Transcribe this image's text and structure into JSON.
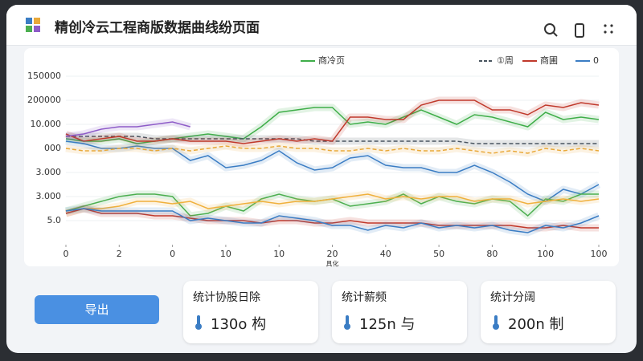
{
  "header": {
    "title": "精创冷云工程商版数据曲线纷页面"
  },
  "chart_data": {
    "type": "line",
    "xlabel": "具化",
    "categories": [
      "0",
      null,
      null,
      "2",
      null,
      null,
      "0",
      null,
      null,
      "10",
      null,
      null,
      "10",
      null,
      null,
      "20",
      null,
      null,
      "40",
      null,
      null,
      "50",
      null,
      null,
      "80",
      null,
      null,
      "100",
      null,
      null,
      "100"
    ],
    "ylim": [
      0,
      7
    ],
    "yticks": [
      1,
      2,
      3,
      4,
      5,
      6,
      7
    ],
    "ytick_labels": [
      "5.0",
      "3.000",
      "3.000",
      "000",
      "10.000",
      "200000",
      "150000"
    ],
    "grid": true,
    "series": [
      {
        "name": "商冷页",
        "color": "#3fae49",
        "values": [
          4.4,
          4.3,
          4.3,
          4.4,
          4.2,
          4.3,
          4.4,
          4.5,
          4.6,
          4.5,
          4.4,
          4.9,
          5.5,
          5.6,
          5.7,
          5.7,
          5.0,
          5.1,
          5.0,
          5.3,
          5.6,
          5.3,
          5.0,
          5.4,
          5.3,
          5.1,
          4.9,
          5.5,
          5.2,
          5.3,
          5.2
        ]
      },
      {
        "name": "①周",
        "color": "#4a5560",
        "dashed": true,
        "values": [
          4.5,
          4.5,
          4.5,
          4.5,
          4.5,
          4.4,
          4.4,
          4.4,
          4.4,
          4.4,
          4.4,
          4.4,
          4.4,
          4.4,
          4.3,
          4.3,
          4.3,
          4.3,
          4.3,
          4.3,
          4.3,
          4.3,
          4.3,
          4.2,
          4.2,
          4.2,
          4.2,
          4.2,
          4.2,
          4.2,
          4.2
        ]
      },
      {
        "name": "商圃",
        "color": "#c0392b",
        "values": [
          4.6,
          4.3,
          4.4,
          4.5,
          4.3,
          4.3,
          4.4,
          4.3,
          4.3,
          4.3,
          4.2,
          4.3,
          4.4,
          4.3,
          4.4,
          4.3,
          5.3,
          5.3,
          5.2,
          5.2,
          5.8,
          6.0,
          6.0,
          6.0,
          5.6,
          5.6,
          5.4,
          5.8,
          5.7,
          5.9,
          5.8
        ]
      },
      {
        "name": "0",
        "color": "#3b7dc4",
        "values": [
          4.3,
          4.2,
          4.0,
          4.0,
          4.1,
          4.0,
          4.0,
          3.5,
          3.7,
          3.2,
          3.3,
          3.5,
          3.9,
          3.4,
          3.1,
          3.2,
          3.6,
          3.7,
          3.3,
          3.2,
          3.2,
          3.0,
          3.0,
          3.3,
          3.0,
          2.6,
          2.1,
          1.8,
          2.3,
          2.1,
          2.5
        ]
      },
      {
        "color": "#8e5cc8",
        "values": [
          4.5,
          4.6,
          4.8,
          4.9,
          4.9,
          5.0,
          5.1,
          4.9,
          null,
          null,
          null,
          null,
          null,
          null,
          null,
          null,
          null,
          null,
          null,
          null,
          null,
          null,
          null,
          null,
          null,
          null,
          null,
          null,
          null,
          null,
          null
        ]
      },
      {
        "color": "#e9a93a",
        "dashed": true,
        "values": [
          4.0,
          3.9,
          3.9,
          4.0,
          4.0,
          3.9,
          4.0,
          3.9,
          4.0,
          4.1,
          4.0,
          4.0,
          4.1,
          4.0,
          4.0,
          3.9,
          3.9,
          4.0,
          3.9,
          4.0,
          3.9,
          3.9,
          4.0,
          3.9,
          3.8,
          3.9,
          3.8,
          4.0,
          3.9,
          4.0,
          3.9
        ]
      },
      {
        "color": "#4caf50",
        "values": [
          1.4,
          1.6,
          1.8,
          2.0,
          2.1,
          2.1,
          2.0,
          1.2,
          1.3,
          1.6,
          1.4,
          1.9,
          2.1,
          1.9,
          1.8,
          1.9,
          1.6,
          1.7,
          1.8,
          2.1,
          1.7,
          2.0,
          1.8,
          1.7,
          1.9,
          1.8,
          1.2,
          1.9,
          1.8,
          2.1,
          2.1
        ]
      },
      {
        "color": "#f0b03c",
        "values": [
          1.3,
          1.5,
          1.5,
          1.6,
          1.8,
          1.8,
          1.7,
          1.8,
          1.5,
          1.6,
          1.7,
          1.8,
          1.7,
          1.8,
          1.8,
          1.9,
          2.0,
          2.1,
          1.9,
          2.0,
          1.9,
          2.0,
          2.0,
          1.8,
          1.9,
          1.9,
          1.7,
          1.8,
          1.9,
          1.8,
          1.9
        ]
      },
      {
        "color": "#c0392b",
        "values": [
          1.3,
          1.5,
          1.3,
          1.3,
          1.3,
          1.2,
          1.2,
          1.1,
          1.0,
          1.0,
          1.0,
          0.9,
          1.0,
          1.0,
          0.9,
          0.9,
          1.0,
          0.9,
          0.9,
          0.9,
          0.9,
          0.8,
          0.8,
          0.8,
          0.8,
          0.8,
          0.7,
          0.7,
          0.8,
          0.7,
          0.7
        ]
      },
      {
        "color": "#3b7dc4",
        "values": [
          1.4,
          1.5,
          1.4,
          1.4,
          1.4,
          1.4,
          1.4,
          1.0,
          1.1,
          1.0,
          0.9,
          0.9,
          1.2,
          1.1,
          1.0,
          0.8,
          0.8,
          0.6,
          0.8,
          0.7,
          0.9,
          0.7,
          0.8,
          0.7,
          0.8,
          0.6,
          0.5,
          0.8,
          0.7,
          0.9,
          1.2
        ]
      }
    ]
  },
  "actions": {
    "export": "导出"
  },
  "stats": [
    {
      "label": "统计协股日除",
      "value": "130o 构"
    },
    {
      "label": "统计薪频",
      "value": "125n 与"
    },
    {
      "label": "统计分阔",
      "value": "200n 制"
    }
  ]
}
